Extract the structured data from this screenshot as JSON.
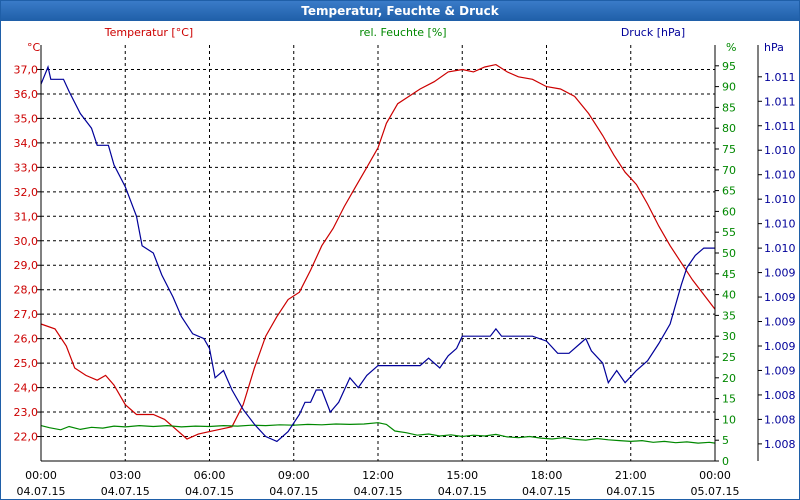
{
  "window": {
    "title": "Temperatur, Feuchte & Druck"
  },
  "colors": {
    "temperature": "#cc0000",
    "humidity": "#008800",
    "pressure": "#000099",
    "axis": "#000000",
    "grid": "#000000"
  },
  "chart_data": {
    "type": "line",
    "title": "Temperatur, Feuchte & Druck",
    "x_ticks": [
      {
        "time": "00:00",
        "date": "04.07.15"
      },
      {
        "time": "03:00",
        "date": "04.07.15"
      },
      {
        "time": "06:00",
        "date": "04.07.15"
      },
      {
        "time": "09:00",
        "date": "04.07.15"
      },
      {
        "time": "12:00",
        "date": "04.07.15"
      },
      {
        "time": "15:00",
        "date": "04.07.15"
      },
      {
        "time": "18:00",
        "date": "04.07.15"
      },
      {
        "time": "21:00",
        "date": "04.07.15"
      },
      {
        "time": "00:00",
        "date": "05.07.15"
      }
    ],
    "xlim_hours": [
      0,
      24
    ],
    "axes": {
      "temperature": {
        "label": "Temperatur [°C]",
        "unit": "°C",
        "ylim": [
          21.0,
          38.0
        ],
        "tick_values": [
          22.0,
          23.0,
          24.0,
          25.0,
          26.0,
          27.0,
          28.0,
          29.0,
          30.0,
          31.0,
          32.0,
          33.0,
          34.0,
          35.0,
          36.0,
          37.0
        ],
        "tick_labels": [
          "22,0",
          "23,0",
          "24,0",
          "25,0",
          "26,0",
          "27,0",
          "28,0",
          "29,0",
          "30,0",
          "31,0",
          "32,0",
          "33,0",
          "34,0",
          "35,0",
          "36,0",
          "37,0"
        ]
      },
      "humidity": {
        "label": "rel. Feuchte [%]",
        "unit": "%",
        "ylim": [
          0,
          100
        ],
        "tick_values": [
          0,
          5,
          10,
          15,
          20,
          25,
          30,
          35,
          40,
          45,
          50,
          55,
          60,
          65,
          70,
          75,
          80,
          85,
          90,
          95
        ],
        "tick_labels": [
          "0",
          "5",
          "10",
          "15",
          "20",
          "25",
          "30",
          "35",
          "40",
          "45",
          "50",
          "55",
          "60",
          "65",
          "70",
          "75",
          "80",
          "85",
          "90",
          "95"
        ]
      },
      "pressure": {
        "label": "Druck [hPa]",
        "unit": "hPa",
        "ylim": [
          0,
          17
        ],
        "tick_values": [
          0.7,
          1.7,
          2.7,
          3.7,
          4.7,
          5.7,
          6.7,
          7.7,
          8.7,
          9.7,
          10.7,
          11.7,
          12.7,
          13.7,
          14.7,
          15.7
        ],
        "tick_labels": [
          "1.008",
          "1.008",
          "1.008",
          "1.009",
          "1.009",
          "1.009",
          "1.009",
          "1.009",
          "1.010",
          "1.010",
          "1.010",
          "1.010",
          "1.010",
          "1.011",
          "1.011",
          "1.011"
        ]
      }
    },
    "series": [
      {
        "name": "Temperatur",
        "axis": "temperature",
        "points": [
          [
            0,
            26.6
          ],
          [
            0.5,
            26.4
          ],
          [
            0.9,
            25.7
          ],
          [
            1.2,
            24.8
          ],
          [
            1.6,
            24.5
          ],
          [
            2.0,
            24.3
          ],
          [
            2.3,
            24.5
          ],
          [
            2.6,
            24.1
          ],
          [
            3.0,
            23.3
          ],
          [
            3.4,
            22.9
          ],
          [
            4.0,
            22.9
          ],
          [
            4.4,
            22.7
          ],
          [
            4.8,
            22.3
          ],
          [
            5.2,
            21.9
          ],
          [
            5.6,
            22.1
          ],
          [
            6.0,
            22.2
          ],
          [
            6.4,
            22.3
          ],
          [
            6.8,
            22.4
          ],
          [
            7.2,
            23.3
          ],
          [
            7.6,
            24.8
          ],
          [
            8.0,
            26.1
          ],
          [
            8.4,
            26.9
          ],
          [
            8.8,
            27.6
          ],
          [
            9.2,
            27.9
          ],
          [
            9.6,
            28.8
          ],
          [
            10.0,
            29.8
          ],
          [
            10.4,
            30.5
          ],
          [
            10.8,
            31.4
          ],
          [
            11.2,
            32.2
          ],
          [
            11.6,
            33.0
          ],
          [
            12.0,
            33.8
          ],
          [
            12.3,
            34.8
          ],
          [
            12.7,
            35.6
          ],
          [
            13.1,
            35.9
          ],
          [
            13.5,
            36.2
          ],
          [
            14.0,
            36.5
          ],
          [
            14.5,
            36.9
          ],
          [
            15.0,
            37.0
          ],
          [
            15.4,
            36.9
          ],
          [
            15.8,
            37.1
          ],
          [
            16.2,
            37.2
          ],
          [
            16.6,
            36.9
          ],
          [
            17.0,
            36.7
          ],
          [
            17.5,
            36.6
          ],
          [
            18.0,
            36.3
          ],
          [
            18.5,
            36.2
          ],
          [
            19.0,
            35.9
          ],
          [
            19.5,
            35.2
          ],
          [
            20.0,
            34.3
          ],
          [
            20.4,
            33.5
          ],
          [
            20.8,
            32.8
          ],
          [
            21.2,
            32.3
          ],
          [
            21.6,
            31.5
          ],
          [
            22.0,
            30.6
          ],
          [
            22.4,
            29.8
          ],
          [
            22.8,
            29.1
          ],
          [
            23.2,
            28.4
          ],
          [
            23.6,
            27.8
          ],
          [
            24.0,
            27.2
          ]
        ]
      },
      {
        "name": "rel. Feuchte",
        "axis": "humidity",
        "points": [
          [
            0,
            8.5
          ],
          [
            0.3,
            8.0
          ],
          [
            0.7,
            7.5
          ],
          [
            1.0,
            8.3
          ],
          [
            1.4,
            7.6
          ],
          [
            1.8,
            8.1
          ],
          [
            2.2,
            7.9
          ],
          [
            2.6,
            8.4
          ],
          [
            3.0,
            8.2
          ],
          [
            3.5,
            8.5
          ],
          [
            4.0,
            8.3
          ],
          [
            4.5,
            8.5
          ],
          [
            5.0,
            8.2
          ],
          [
            5.5,
            8.4
          ],
          [
            6.0,
            8.3
          ],
          [
            6.5,
            8.5
          ],
          [
            7.0,
            8.4
          ],
          [
            7.5,
            8.6
          ],
          [
            8.0,
            8.5
          ],
          [
            8.5,
            8.7
          ],
          [
            9.0,
            8.6
          ],
          [
            9.5,
            8.8
          ],
          [
            10.0,
            8.7
          ],
          [
            10.5,
            8.9
          ],
          [
            11.0,
            8.8
          ],
          [
            11.5,
            8.9
          ],
          [
            12.0,
            9.2
          ],
          [
            12.3,
            8.8
          ],
          [
            12.6,
            7.2
          ],
          [
            13.0,
            6.8
          ],
          [
            13.4,
            6.2
          ],
          [
            13.8,
            6.5
          ],
          [
            14.2,
            6.0
          ],
          [
            14.6,
            6.3
          ],
          [
            15.0,
            5.9
          ],
          [
            15.4,
            6.2
          ],
          [
            15.8,
            6.0
          ],
          [
            16.2,
            6.4
          ],
          [
            16.6,
            5.8
          ],
          [
            17.0,
            5.6
          ],
          [
            17.4,
            5.9
          ],
          [
            17.8,
            5.5
          ],
          [
            18.2,
            5.3
          ],
          [
            18.6,
            5.6
          ],
          [
            19.0,
            5.2
          ],
          [
            19.4,
            5.0
          ],
          [
            19.8,
            5.4
          ],
          [
            20.2,
            5.1
          ],
          [
            20.6,
            4.9
          ],
          [
            21.0,
            4.7
          ],
          [
            21.4,
            4.9
          ],
          [
            21.8,
            4.5
          ],
          [
            22.2,
            4.7
          ],
          [
            22.6,
            4.4
          ],
          [
            23.0,
            4.6
          ],
          [
            23.4,
            4.3
          ],
          [
            23.8,
            4.5
          ],
          [
            24.0,
            4.3
          ]
        ]
      },
      {
        "name": "Druck",
        "axis": "pressure",
        "points": [
          [
            0,
            15.4
          ],
          [
            0.25,
            16.1
          ],
          [
            0.35,
            15.6
          ],
          [
            0.8,
            15.6
          ],
          [
            1.0,
            15.1
          ],
          [
            1.4,
            14.2
          ],
          [
            1.8,
            13.6
          ],
          [
            2.0,
            12.9
          ],
          [
            2.4,
            12.9
          ],
          [
            2.6,
            12.1
          ],
          [
            3.0,
            11.2
          ],
          [
            3.4,
            10.0
          ],
          [
            3.6,
            8.8
          ],
          [
            4.0,
            8.5
          ],
          [
            4.3,
            7.6
          ],
          [
            4.7,
            6.7
          ],
          [
            5.0,
            5.9
          ],
          [
            5.4,
            5.2
          ],
          [
            5.8,
            5.0
          ],
          [
            6.0,
            4.6
          ],
          [
            6.2,
            3.4
          ],
          [
            6.5,
            3.7
          ],
          [
            6.8,
            2.9
          ],
          [
            7.2,
            2.1
          ],
          [
            7.6,
            1.5
          ],
          [
            8.0,
            1.0
          ],
          [
            8.4,
            0.8
          ],
          [
            8.8,
            1.2
          ],
          [
            9.2,
            1.9
          ],
          [
            9.4,
            2.4
          ],
          [
            9.6,
            2.4
          ],
          [
            9.8,
            2.9
          ],
          [
            10.0,
            2.9
          ],
          [
            10.3,
            2.0
          ],
          [
            10.6,
            2.4
          ],
          [
            10.8,
            2.9
          ],
          [
            11.0,
            3.4
          ],
          [
            11.3,
            3.0
          ],
          [
            11.6,
            3.5
          ],
          [
            12.0,
            3.9
          ],
          [
            12.5,
            3.9
          ],
          [
            13.0,
            3.9
          ],
          [
            13.5,
            3.9
          ],
          [
            13.8,
            4.2
          ],
          [
            14.2,
            3.8
          ],
          [
            14.5,
            4.3
          ],
          [
            14.8,
            4.6
          ],
          [
            15.0,
            5.1
          ],
          [
            15.5,
            5.1
          ],
          [
            16.0,
            5.1
          ],
          [
            16.2,
            5.4
          ],
          [
            16.4,
            5.1
          ],
          [
            17.0,
            5.1
          ],
          [
            17.5,
            5.1
          ],
          [
            18.0,
            4.9
          ],
          [
            18.4,
            4.4
          ],
          [
            18.8,
            4.4
          ],
          [
            19.2,
            4.8
          ],
          [
            19.4,
            5.0
          ],
          [
            19.6,
            4.5
          ],
          [
            20.0,
            4.0
          ],
          [
            20.2,
            3.2
          ],
          [
            20.5,
            3.7
          ],
          [
            20.8,
            3.2
          ],
          [
            21.2,
            3.7
          ],
          [
            21.6,
            4.1
          ],
          [
            22.0,
            4.8
          ],
          [
            22.4,
            5.6
          ],
          [
            22.8,
            7.2
          ],
          [
            23.0,
            7.9
          ],
          [
            23.3,
            8.4
          ],
          [
            23.6,
            8.7
          ],
          [
            24.0,
            8.7
          ]
        ]
      }
    ]
  }
}
